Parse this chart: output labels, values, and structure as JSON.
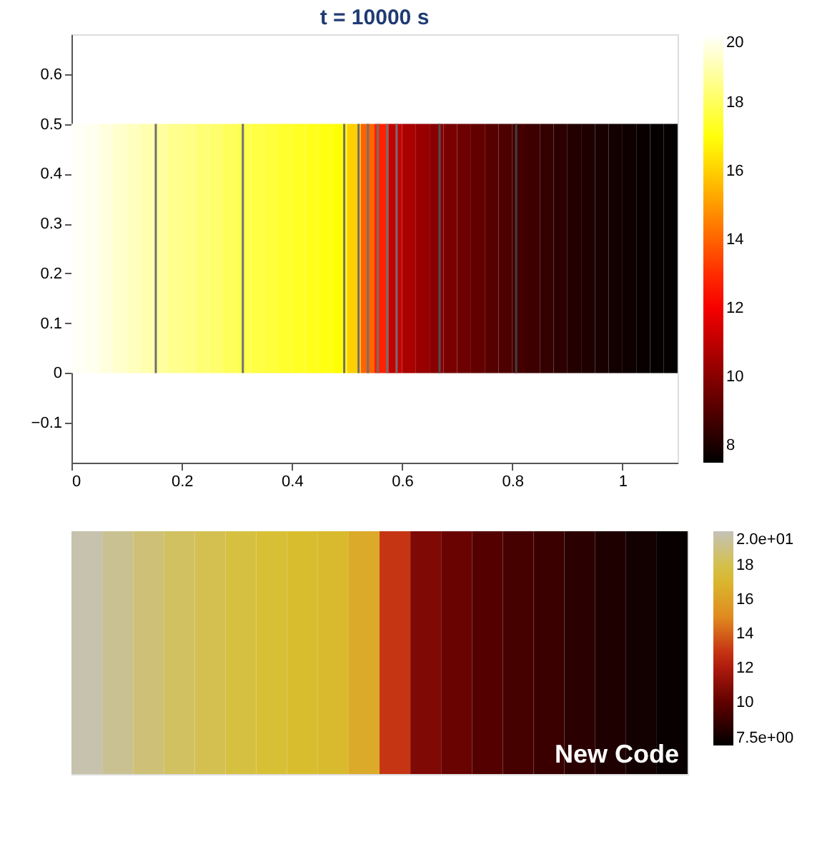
{
  "chart_data": [
    {
      "type": "heatmap",
      "title": "t = 10000 s",
      "x": [
        0.0125,
        0.0375,
        0.0625,
        0.0875,
        0.1125,
        0.1375,
        0.1625,
        0.1875,
        0.2125,
        0.2375,
        0.2625,
        0.2875,
        0.3125,
        0.3375,
        0.3625,
        0.3875,
        0.4125,
        0.4375,
        0.4625,
        0.4875,
        0.5125,
        0.5375,
        0.5625,
        0.5875,
        0.6125,
        0.6375,
        0.6625,
        0.6875,
        0.7125,
        0.7375,
        0.7625,
        0.7875,
        0.8125,
        0.8375,
        0.8625,
        0.8875,
        0.9125,
        0.9375,
        0.9625,
        0.9875,
        1.0125,
        1.0375,
        1.0625,
        1.0875
      ],
      "y": [
        0.375,
        0.125
      ],
      "cells": [
        [
          19.9,
          19.8,
          19.6,
          19.4,
          19.2,
          19.0,
          18.8,
          18.6,
          18.5,
          18.3,
          18.2,
          18.0,
          17.8,
          17.7,
          17.6,
          17.4,
          17.3,
          17.2,
          17.1,
          16.9,
          16.0,
          14.0,
          12.8,
          11.1,
          10.6,
          10.3,
          10.0,
          9.7,
          9.5,
          9.3,
          9.1,
          8.9,
          8.75,
          8.6,
          8.45,
          8.3,
          8.15,
          8.05,
          7.95,
          7.85,
          7.75,
          7.65,
          7.6,
          7.55
        ],
        [
          19.9,
          19.8,
          19.6,
          19.4,
          19.2,
          19.0,
          18.8,
          18.6,
          18.5,
          18.3,
          18.2,
          18.0,
          17.8,
          17.7,
          17.6,
          17.4,
          17.3,
          17.2,
          17.1,
          16.9,
          16.0,
          14.0,
          12.8,
          11.1,
          10.6,
          10.3,
          10.0,
          9.7,
          9.5,
          9.3,
          9.1,
          8.9,
          8.75,
          8.6,
          8.45,
          8.3,
          8.15,
          8.05,
          7.95,
          7.85,
          7.75,
          7.65,
          7.6,
          7.55
        ]
      ],
      "colors": [
        "#000000",
        "#550000",
        "#aa0000",
        "#ff0000",
        "#ff5500",
        "#ffaa00",
        "#ffff00",
        "#ffff80",
        "#ffffff"
      ],
      "clim": [
        7.5,
        20
      ],
      "cticks": [
        8,
        10,
        12,
        14,
        16,
        18,
        20
      ],
      "xlim": [
        0,
        1.1
      ],
      "xticks": [
        {
          "value": 0,
          "label": "0"
        },
        0.2,
        0.4,
        0.6,
        0.8,
        {
          "value": 1,
          "label": "1"
        }
      ],
      "ylim": [
        -0.18,
        0.68
      ],
      "yticks": [
        -0.1,
        {
          "value": 0,
          "label": "0"
        },
        0.1,
        0.2,
        0.3,
        0.4,
        0.5,
        0.6
      ],
      "ref_lines": [
        {
          "axis": "x",
          "value": 0.153,
          "color": "#707070"
        },
        {
          "axis": "x",
          "value": 0.311,
          "color": "#707070"
        },
        {
          "axis": "x",
          "value": 0.495,
          "color": "#707070"
        },
        {
          "axis": "x",
          "value": 0.521,
          "color": "#707070"
        },
        {
          "axis": "x",
          "value": 0.538,
          "color": "#707070"
        },
        {
          "axis": "x",
          "value": 0.556,
          "color": "#707070"
        },
        {
          "axis": "x",
          "value": 0.573,
          "color": "#707070"
        },
        {
          "axis": "x",
          "value": 0.59,
          "color": "#707070"
        },
        {
          "axis": "x",
          "value": 0.668,
          "color": "#505050"
        },
        {
          "axis": "x",
          "value": 0.807,
          "color": "#404040"
        }
      ],
      "grid": false
    },
    {
      "type": "heatmap",
      "categories": [
        null,
        null,
        null,
        null,
        null,
        null,
        null,
        null,
        null,
        null,
        null,
        null,
        null,
        null,
        null,
        null,
        null,
        null,
        null,
        null
      ],
      "y_categories": [
        null
      ],
      "cells": [
        [
          19.8,
          19.3,
          18.8,
          18.4,
          18.1,
          17.8,
          17.6,
          17.4,
          17.2,
          16.5,
          13.0,
          10.8,
          10.2,
          9.7,
          9.3,
          9.0,
          8.6,
          8.3,
          8.0,
          7.7
        ]
      ],
      "colors": [
        "#000000",
        "#600000",
        "#c02010",
        "#e08a20",
        "#d8c030",
        "#c4c2b8"
      ],
      "clim": [
        7.5,
        20
      ],
      "cticks": [
        {
          "value": 20,
          "label": "2.0e+01"
        },
        18,
        16,
        14,
        12,
        10,
        {
          "value": 7.5,
          "label": "7.5e+00"
        }
      ],
      "annotations": [
        "New Code"
      ]
    }
  ]
}
